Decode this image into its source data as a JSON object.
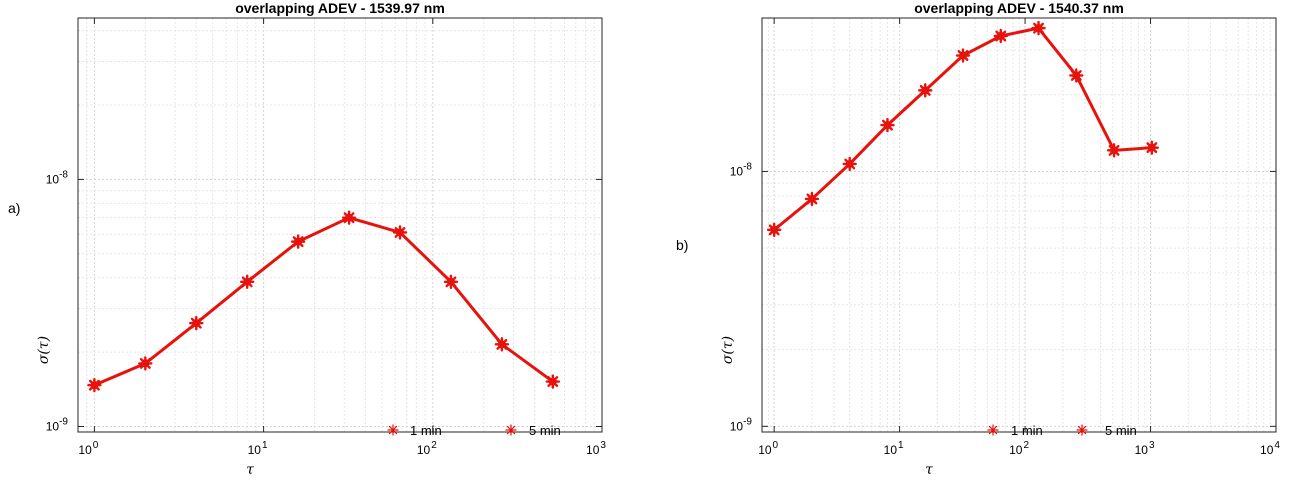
{
  "chart_data": [
    {
      "type": "line",
      "panel_label": "a)",
      "title": "overlapping ADEV - 1539.97 nm",
      "xlabel": "τ",
      "ylabel": "σ(τ)",
      "xscale": "log",
      "yscale": "log",
      "xlim": [
        0.8,
        1000
      ],
      "ylim": [
        9.5e-10,
        4.5e-08
      ],
      "x_ticks": [
        1,
        10,
        100,
        1000
      ],
      "x_tick_labels": [
        [
          "10",
          "0"
        ],
        [
          "10",
          "1"
        ],
        [
          "10",
          "2"
        ],
        [
          "10",
          "3"
        ]
      ],
      "y_ticks": [
        1e-09,
        1e-08
      ],
      "y_tick_labels": [
        [
          "10",
          "-9"
        ],
        [
          "10",
          "-8"
        ]
      ],
      "grid": true,
      "color": "#e8120c",
      "x": [
        1,
        2,
        4,
        8,
        16,
        32,
        64,
        128,
        256,
        512
      ],
      "y": [
        1.47e-09,
        1.8e-09,
        2.62e-09,
        3.85e-09,
        5.6e-09,
        7e-09,
        6.1e-09,
        3.85e-09,
        2.15e-09,
        1.52e-09
      ],
      "legend": {
        "placement": "bottom-right",
        "entries": [
          "1 min",
          "5 min"
        ]
      }
    },
    {
      "type": "line",
      "panel_label": "b)",
      "title": "overlapping ADEV - 1540.37 nm",
      "xlabel": "τ",
      "ylabel": "σ(τ)",
      "xscale": "log",
      "yscale": "log",
      "xlim": [
        0.8,
        10000
      ],
      "ylim": [
        9.5e-10,
        4e-08
      ],
      "x_ticks": [
        1,
        10,
        100,
        1000,
        10000
      ],
      "x_tick_labels": [
        [
          "10",
          "0"
        ],
        [
          "10",
          "1"
        ],
        [
          "10",
          "2"
        ],
        [
          "10",
          "3"
        ],
        [
          "10",
          "4"
        ]
      ],
      "y_ticks": [
        1e-09,
        1e-08
      ],
      "y_tick_labels": [
        [
          "10",
          "-9"
        ],
        [
          "10",
          "-8"
        ]
      ],
      "grid": true,
      "color": "#e8120c",
      "x": [
        1,
        2,
        4,
        8,
        16,
        32,
        64,
        128,
        256,
        512,
        1024
      ],
      "y": [
        5.9e-09,
        7.8e-09,
        1.07e-08,
        1.52e-08,
        2.08e-08,
        2.85e-08,
        3.4e-08,
        3.65e-08,
        2.38e-08,
        1.21e-08,
        1.24e-08
      ],
      "legend": {
        "placement": "bottom-center",
        "entries": [
          "1 min",
          "5 min"
        ]
      }
    }
  ]
}
